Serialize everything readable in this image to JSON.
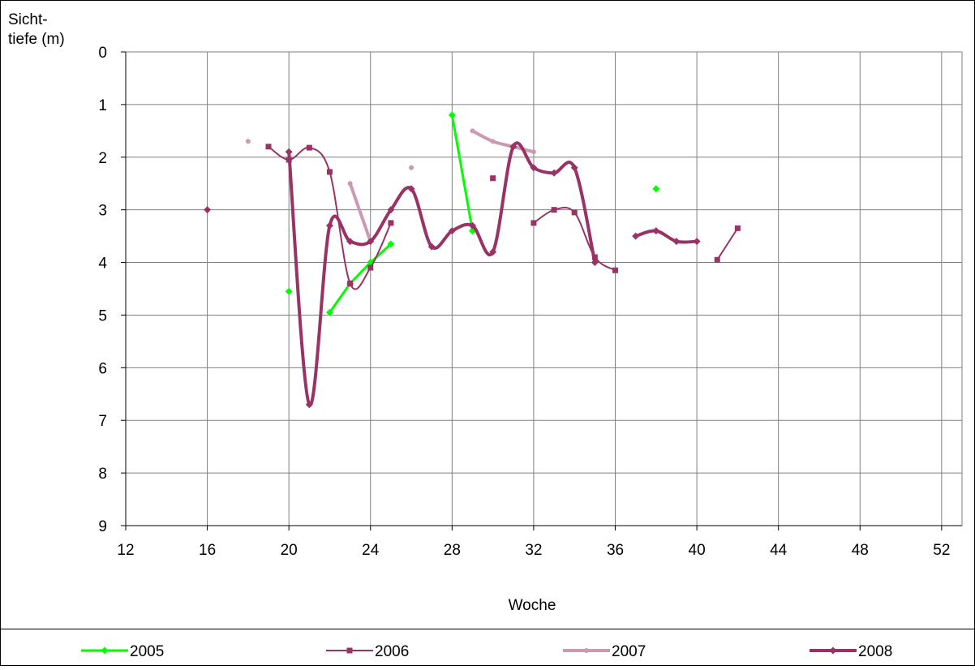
{
  "chart_data": {
    "type": "line",
    "ylabel_lines": [
      "Sicht-",
      "tiefe (m)"
    ],
    "xlabel": "Woche",
    "xlim": [
      12,
      53
    ],
    "ylim": [
      0,
      9
    ],
    "y_inverted": true,
    "x_ticks": [
      12,
      16,
      20,
      24,
      28,
      32,
      36,
      40,
      44,
      48,
      52
    ],
    "y_ticks": [
      0,
      1,
      2,
      3,
      4,
      5,
      6,
      7,
      8,
      9
    ],
    "grid": true,
    "legend_position": "bottom",
    "series": [
      {
        "name": "2005",
        "color": "#00ff00",
        "marker": "diamond",
        "width": 3,
        "smooth": false,
        "segments": [
          [
            [
              20,
              4.55
            ]
          ],
          [
            [
              22,
              4.95
            ],
            [
              23,
              4.4
            ],
            [
              24,
              4.0
            ],
            [
              25,
              3.65
            ]
          ],
          [
            [
              28,
              1.2
            ],
            [
              29,
              3.4
            ]
          ],
          [
            [
              38,
              2.6
            ]
          ]
        ]
      },
      {
        "name": "2006",
        "color": "#993366",
        "marker": "square",
        "width": 2,
        "smooth": true,
        "segments": [
          [
            [
              19,
              1.8
            ],
            [
              20,
              2.05
            ],
            [
              21,
              1.82
            ],
            [
              22,
              2.28
            ],
            [
              23,
              4.4
            ],
            [
              24,
              4.1
            ],
            [
              25,
              3.25
            ]
          ],
          [
            [
              30,
              2.4
            ]
          ],
          [
            [
              32,
              3.25
            ],
            [
              33,
              3.0
            ],
            [
              34,
              3.05
            ],
            [
              35,
              3.9
            ],
            [
              36,
              4.15
            ]
          ],
          [
            [
              41,
              3.95
            ],
            [
              42,
              3.35
            ]
          ]
        ]
      },
      {
        "name": "2007",
        "color": "#cc99b3",
        "marker": "circle",
        "width": 4,
        "smooth": true,
        "segments": [
          [
            [
              18,
              1.7
            ]
          ],
          [
            [
              23,
              2.5
            ],
            [
              24,
              3.6
            ]
          ],
          [
            [
              26,
              2.2
            ]
          ],
          [
            [
              29,
              1.5
            ],
            [
              30,
              1.7
            ],
            [
              31,
              1.8
            ],
            [
              32,
              1.9
            ]
          ]
        ]
      },
      {
        "name": "2008",
        "color": "#993366",
        "marker": "diamond",
        "width": 4,
        "smooth": true,
        "segments": [
          [
            [
              16,
              3.0
            ]
          ],
          [
            [
              20,
              1.9
            ],
            [
              21,
              6.7
            ],
            [
              22,
              3.3
            ],
            [
              23,
              3.6
            ],
            [
              24,
              3.6
            ],
            [
              25,
              3.0
            ],
            [
              26,
              2.6
            ],
            [
              27,
              3.7
            ],
            [
              28,
              3.4
            ],
            [
              29,
              3.3
            ],
            [
              30,
              3.8
            ],
            [
              31,
              1.8
            ],
            [
              32,
              2.2
            ],
            [
              33,
              2.3
            ],
            [
              34,
              2.2
            ],
            [
              35,
              4.0
            ]
          ],
          [
            [
              37,
              3.5
            ],
            [
              38,
              3.4
            ],
            [
              39,
              3.6
            ],
            [
              40,
              3.6
            ]
          ]
        ]
      }
    ]
  }
}
